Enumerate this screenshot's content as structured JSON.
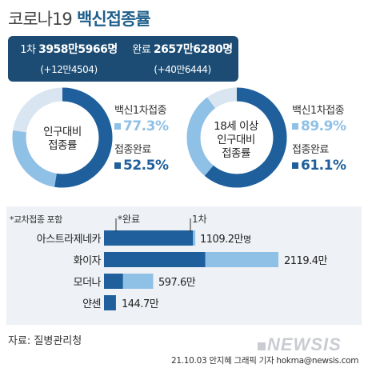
{
  "title": {
    "prefix": "코로나19",
    "main": "백신접종률"
  },
  "summary": {
    "first_label": "1차",
    "first_value": "3958만5966명",
    "first_delta": "(+12만4504)",
    "full_label": "완료",
    "full_value": "2657만6280명",
    "full_delta": "(+40만6444)"
  },
  "donut_total": {
    "center_line1": "인구대비",
    "center_line2": "접종률",
    "first_label": "백신1차접종",
    "first_pct_text": "77.3%",
    "full_label": "접종완료",
    "full_pct_text": "52.5%"
  },
  "donut_adult": {
    "center_line1": "18세 이상",
    "center_line2": "인구대비",
    "center_line3": "접종률",
    "first_label": "백신1차접종",
    "first_pct_text": "89.9%",
    "full_label": "접종완료",
    "full_pct_text": "61.1%"
  },
  "bar_chart": {
    "note": "*교차접종 포함",
    "legend_full": "*완료",
    "legend_first": "1차",
    "rows": [
      {
        "label": "아스트라제네카",
        "value_text": "1109.2만",
        "unit": "명"
      },
      {
        "label": "화이자",
        "value_text": "2119.4만",
        "unit": ""
      },
      {
        "label": "모더나",
        "value_text": "597.6만",
        "unit": ""
      },
      {
        "label": "얀센",
        "value_text": "144.7만",
        "unit": ""
      }
    ]
  },
  "source": "자료: 질병관리청",
  "credit": "21.10.03 안지혜 그래픽 기자 hokma@newsis.com",
  "watermark": "NEWSIS",
  "colors": {
    "navy": "#1c4c73",
    "light_blue": "#8fc0e6",
    "dark_blue": "#1f5f9c",
    "panel_bg": "#eef1f5"
  },
  "chart_data": [
    {
      "type": "pie",
      "categories": [
        "백신1차접종",
        "접종완료"
      ],
      "values": [
        77.3,
        52.5
      ]
    },
    {
      "type": "pie",
      "categories": [
        "백신1차접종",
        "접종완료"
      ],
      "values": [
        89.9,
        61.1
      ]
    },
    {
      "type": "bar",
      "categories": [
        "아스트라제네카",
        "화이자",
        "모더나",
        "얀센"
      ],
      "series": [
        {
          "name": "*완료",
          "values": [
            1080,
            1230,
            230,
            144.7
          ]
        },
        {
          "name": "1차",
          "values": [
            1109.2,
            2119.4,
            597.6,
            144.7
          ]
        }
      ],
      "ylabel": "",
      "xlim": [
        0,
        2200
      ]
    }
  ]
}
